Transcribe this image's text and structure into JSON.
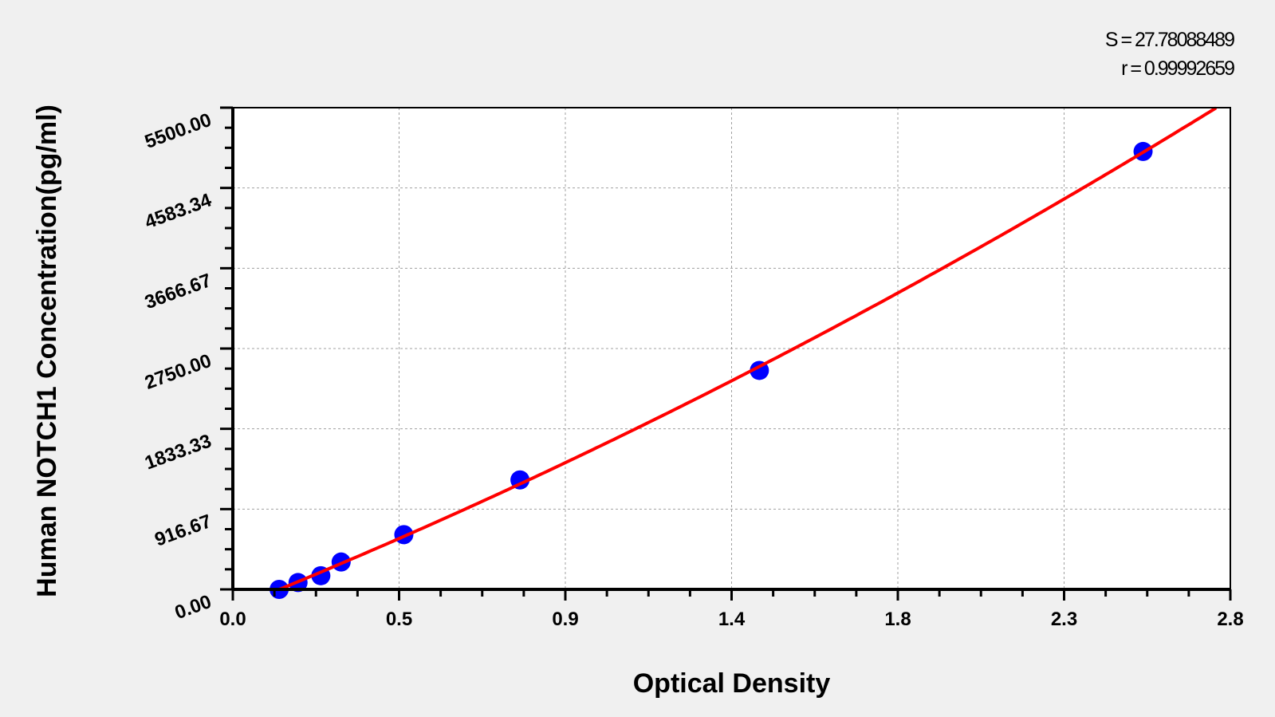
{
  "chart_data": {
    "type": "scatter",
    "title": "",
    "xlabel": "Optical Density",
    "ylabel": "Human NOTCH1 Concentration(pg/ml)",
    "xlim": [
      0,
      2.8
    ],
    "ylim": [
      0,
      5500
    ],
    "x_ticks": [
      "0.0",
      "0.5",
      "0.9",
      "1.4",
      "1.8",
      "2.3",
      "2.8"
    ],
    "y_ticks": [
      "0.00",
      "916.67",
      "1833.33",
      "2750.00",
      "3666.67",
      "4583.34",
      "5500.00"
    ],
    "grid": true,
    "series": [
      {
        "type": "scatter",
        "color": "#0000ff",
        "x": [
          0.13,
          0.183,
          0.247,
          0.304,
          0.48,
          0.806,
          1.478,
          2.555
        ],
        "y": [
          0,
          78.13,
          156.25,
          312.5,
          625,
          1250,
          2500,
          5000
        ]
      },
      {
        "type": "fit-curve",
        "color": "#ff0000"
      }
    ],
    "annotations": {
      "s": "S = 27.78088489",
      "r": "r = 0.99992659"
    }
  }
}
